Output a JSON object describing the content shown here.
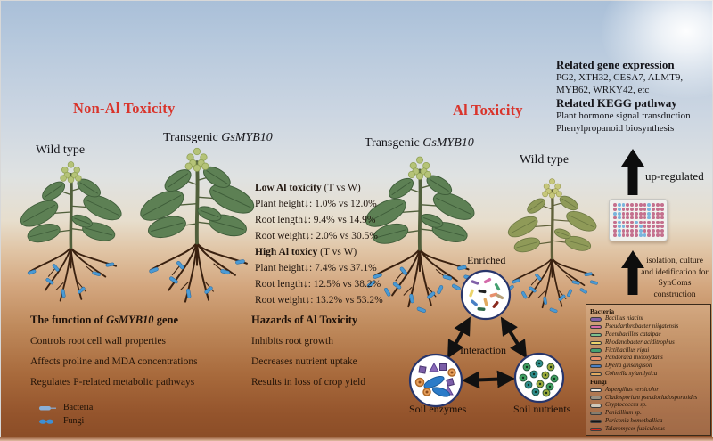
{
  "headings": {
    "non_al": "Non-Al Toxicity",
    "al": "Al Toxicity"
  },
  "plant_labels": {
    "wild_left": "Wild type",
    "wild_right": "Wild type",
    "transgenic_prefix": "Transgenic ",
    "gene": "GsMYB10"
  },
  "gene_panel": {
    "expr_title": "Related gene expression",
    "expr_lines": [
      "PG2, XTH32, CESA7, ALMT9,",
      "MYB62, WRKY42, etc"
    ],
    "kegg_title": "Related KEGG pathway",
    "kegg_lines": [
      "Plant hormone signal transduction",
      "Phenylpropanoid biosynthesis"
    ]
  },
  "stats": {
    "low_title_bold": "Low Al toxicity",
    "low_title_rest": " (T vs W)",
    "low_items": [
      "Plant height↓: 1.0% vs 12.0%",
      "Root length↓: 9.4% vs 14.9%",
      "Root weight↓: 2.0% vs 30.5%"
    ],
    "high_title_bold": "High Al toxicy",
    "high_title_rest": " (T vs W)",
    "high_items": [
      "Plant height↓: 7.4% vs 37.1%",
      "Root length↓: 12.5% vs 38.2%",
      "Root weight↓: 13.2% vs 53.2%"
    ]
  },
  "function_panel": {
    "title_pre": "The function of ",
    "title_gene": "GsMYB10",
    "title_post": " gene",
    "items": [
      "Controls root cell wall properties",
      "Affects proline and MDA concentrations",
      "Regulates P-related metabolic pathways"
    ]
  },
  "hazards_panel": {
    "title": "Hazards of Al Toxicity",
    "items": [
      "Inhibits root growth",
      "Decreases nutrient uptake",
      "Results in loss of crop yield"
    ]
  },
  "interaction": {
    "enriched_label": "Enriched",
    "interaction_label": "Interaction",
    "soil_enzymes_label": "Soil enzymes",
    "soil_nutrients_label": "Soil nutrients"
  },
  "right_flow": {
    "up_regulated": "up-regulated",
    "syncom_lines": [
      "isolation, culture",
      "and idetification for",
      "SynComs construction"
    ]
  },
  "root_legend": {
    "bacteria": "Bacteria",
    "fungi": "Fungi"
  },
  "species_legend": {
    "bacteria_header": "Bacteria",
    "bacteria": [
      {
        "name": "Bacillus niacini",
        "color": "#8060a8"
      },
      {
        "name": "Pseudarthrobacter niigatensis",
        "color": "#d46aaa"
      },
      {
        "name": "Paenibacillus catalpae",
        "color": "#7cc08e"
      },
      {
        "name": "Rhodanobacter aciditrophus",
        "color": "#ecd46a"
      },
      {
        "name": "Fictibacillus rigui",
        "color": "#44a070"
      },
      {
        "name": "Pandoraea thiooxydans",
        "color": "#e8906c"
      },
      {
        "name": "Dyella ginsengisoli",
        "color": "#4a80c4"
      },
      {
        "name": "Cohnella xylanilytica",
        "color": "#e2aa60"
      }
    ],
    "fungi_header": "Fungi",
    "fungi": [
      {
        "name": "Aspergillus versicolor",
        "color": "#ece8e0"
      },
      {
        "name": "Cladosporium pseudocladosporioides",
        "color": "#9b9283"
      },
      {
        "name": "Cryptococcus sp.",
        "color": "#cfc8ba"
      },
      {
        "name": "Penicillium sp.",
        "color": "#857d6e"
      },
      {
        "name": "Periconia homothallica",
        "color": "#151515"
      },
      {
        "name": "Talaromyces funiculosus",
        "color": "#d42a1e"
      }
    ]
  },
  "colors": {
    "heading_red": "#d9342b",
    "bacteria_rod_blue": "#4a9ad4",
    "plate_pink": "#c4708e",
    "plate_blue": "#7ab4dc"
  }
}
